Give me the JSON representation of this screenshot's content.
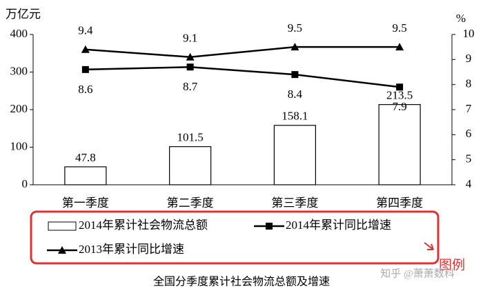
{
  "chart_data": {
    "type": "bar",
    "title": "全国分季度累计社会物流总额及增速",
    "y_label": "万亿元",
    "y2_label": "%",
    "categories": [
      "第一季度",
      "第二季度",
      "第三季度",
      "第四季度"
    ],
    "series": [
      {
        "name": "2014年累计社会物流总额",
        "type": "bar",
        "color": "#000000",
        "values": [
          47.8,
          101.5,
          158.1,
          213.5
        ]
      },
      {
        "name": "2014年累计同比增速",
        "type": "line",
        "marker": "square",
        "axis": "y2",
        "label_position": "below",
        "color": "#000000",
        "values": [
          8.6,
          8.7,
          8.4,
          7.9
        ]
      },
      {
        "name": "2013年累计同比增速",
        "type": "line",
        "marker": "triangle",
        "axis": "y2",
        "label_position": "above",
        "color": "#000000",
        "values": [
          9.4,
          9.1,
          9.5,
          9.5
        ]
      }
    ],
    "ylim": [
      0,
      400
    ],
    "yticks": [
      0,
      100,
      200,
      300,
      400
    ],
    "y2lim": [
      4,
      10
    ],
    "y2ticks": [
      4,
      5,
      6,
      7,
      8,
      9,
      10
    ],
    "annotation": "图例",
    "annotation_color": "#e03030",
    "watermark": "知乎 @萧萧数科"
  }
}
